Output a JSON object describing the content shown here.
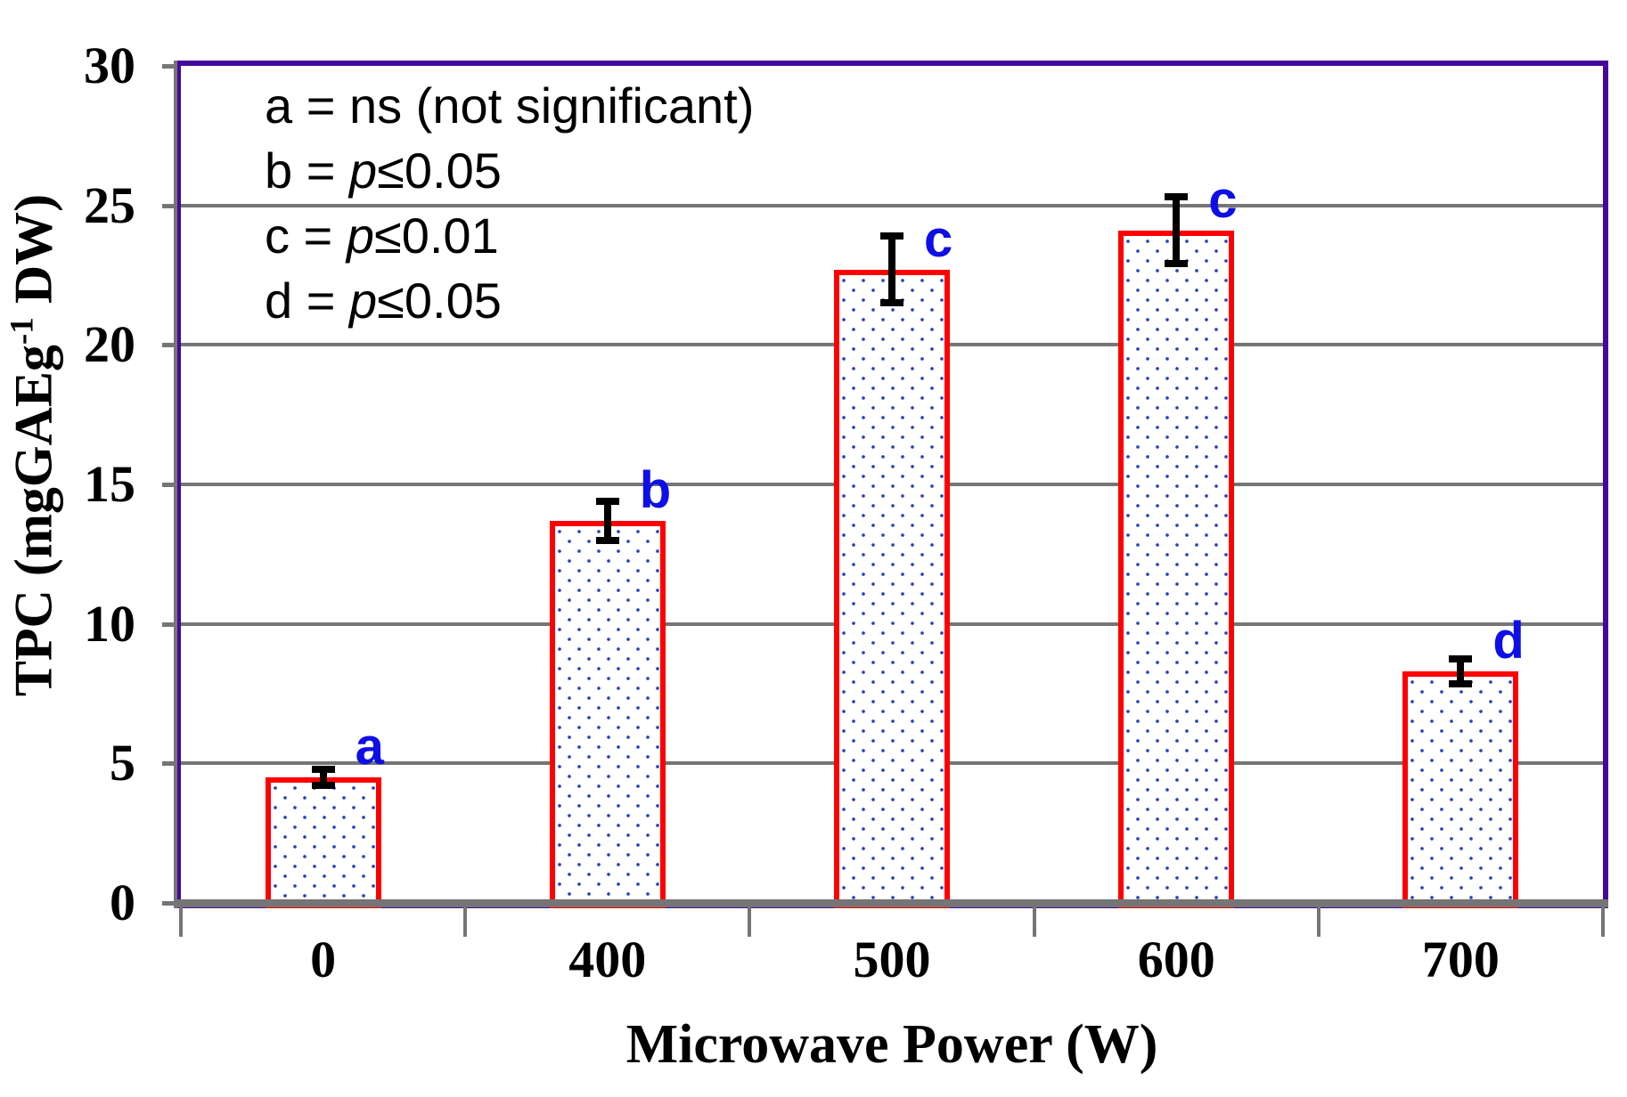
{
  "chart_data": {
    "type": "bar",
    "title": "",
    "xlabel": "Microwave Power (W)",
    "ylabel": {
      "pre": "TPC (mgGAEg",
      "sup": "-1",
      "post": " DW)"
    },
    "categories": [
      "0",
      "400",
      "500",
      "600",
      "700"
    ],
    "values": [
      4.5,
      13.7,
      22.7,
      24.1,
      8.3
    ],
    "errors": [
      0.3,
      0.7,
      1.2,
      1.2,
      0.45
    ],
    "sig_letters": [
      "a",
      "b",
      "c",
      "c",
      "d"
    ],
    "ylim": [
      0,
      30
    ],
    "yticks": [
      0,
      5,
      10,
      15,
      20,
      25,
      30
    ],
    "grid": true,
    "legend_position": "top-left-inside",
    "legend_lines": [
      {
        "pre": "a = ns (not significant)",
        "italic": "",
        "post": ""
      },
      {
        "pre": "b = ",
        "italic": "p",
        "post": "≤0.05"
      },
      {
        "pre": "c = ",
        "italic": "p",
        "post": "≤0.01"
      },
      {
        "pre": "d = ",
        "italic": "p",
        "post": "≤0.05"
      }
    ],
    "bar_style": {
      "fill": "white",
      "pattern": "blue-dots",
      "border": "red"
    }
  },
  "colors": {
    "frame": "#45089D",
    "grid": "#757575",
    "axis": "#757575",
    "bar_border": "#FF0000",
    "bar_dot": "#2B44BE",
    "error_bar": "#000000",
    "sig_letter": "#0E0EE6",
    "text": "#000000"
  }
}
